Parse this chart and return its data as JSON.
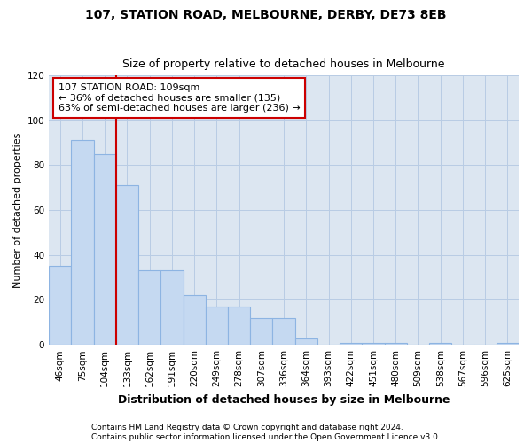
{
  "title1": "107, STATION ROAD, MELBOURNE, DERBY, DE73 8EB",
  "title2": "Size of property relative to detached houses in Melbourne",
  "xlabel": "Distribution of detached houses by size in Melbourne",
  "ylabel": "Number of detached properties",
  "categories": [
    "46sqm",
    "75sqm",
    "104sqm",
    "133sqm",
    "162sqm",
    "191sqm",
    "220sqm",
    "249sqm",
    "278sqm",
    "307sqm",
    "336sqm",
    "364sqm",
    "393sqm",
    "422sqm",
    "451sqm",
    "480sqm",
    "509sqm",
    "538sqm",
    "567sqm",
    "596sqm",
    "625sqm"
  ],
  "values": [
    35,
    91,
    85,
    71,
    33,
    33,
    22,
    17,
    17,
    12,
    12,
    3,
    0,
    1,
    1,
    1,
    0,
    1,
    0,
    0,
    1
  ],
  "bar_color": "#c5d9f1",
  "bar_edge_color": "#8db4e2",
  "background_color": "#ffffff",
  "plot_bg_color": "#dce6f1",
  "grid_color": "#b8cce4",
  "annotation_text_line1": "107 STATION ROAD: 109sqm",
  "annotation_text_line2": "← 36% of detached houses are smaller (135)",
  "annotation_text_line3": "63% of semi-detached houses are larger (236) →",
  "annotation_box_color": "#ffffff",
  "annotation_box_edge_color": "#cc0000",
  "red_line_color": "#cc0000",
  "ylim": [
    0,
    120
  ],
  "yticks": [
    0,
    20,
    40,
    60,
    80,
    100,
    120
  ],
  "footer1": "Contains HM Land Registry data © Crown copyright and database right 2024.",
  "footer2": "Contains public sector information licensed under the Open Government Licence v3.0.",
  "title_fontsize": 10,
  "subtitle_fontsize": 9,
  "xlabel_fontsize": 9,
  "ylabel_fontsize": 8,
  "tick_fontsize": 7.5,
  "annotation_fontsize": 8,
  "footer_fontsize": 6.5
}
